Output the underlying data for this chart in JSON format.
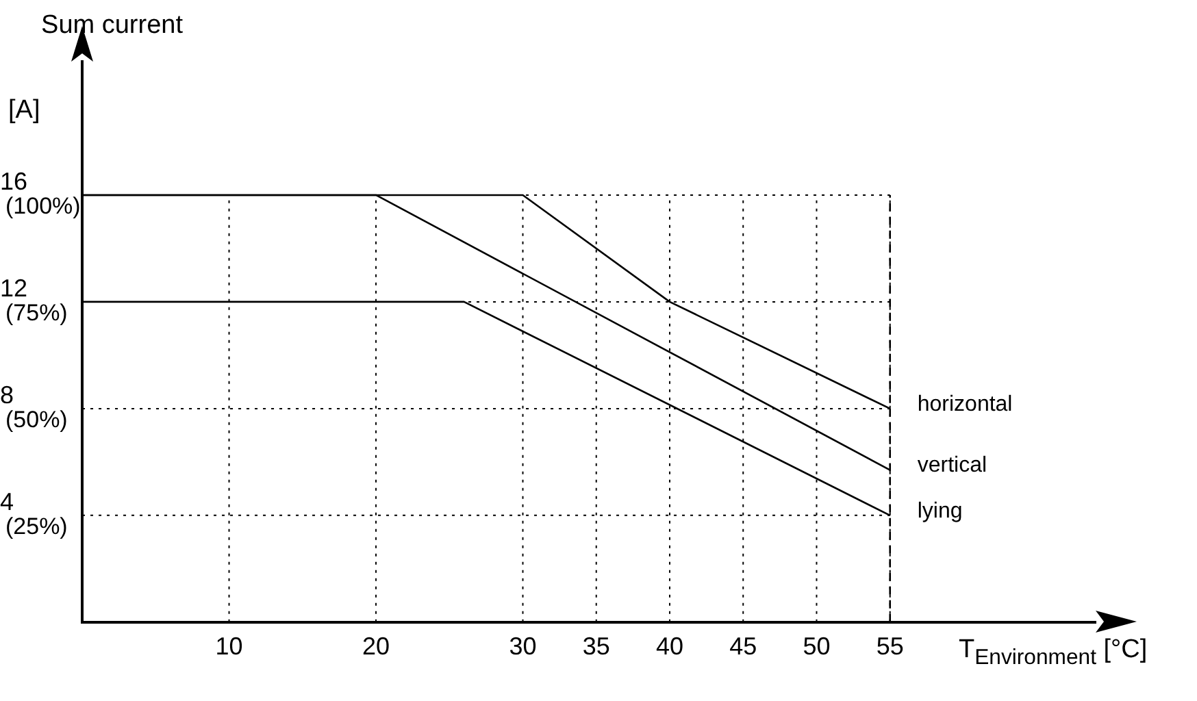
{
  "chart_data": {
    "type": "line",
    "title": "Sum current",
    "ylabel": "[A]",
    "xlabel": "T$_{Environment}$ [°C]",
    "series": [
      {
        "name": "horizontal",
        "color": "#000000",
        "x": [
          0,
          30,
          40,
          55
        ],
        "values": [
          16,
          16,
          12,
          8
        ]
      },
      {
        "name": "vertical",
        "color": "#000000",
        "x": [
          0,
          20,
          55
        ],
        "values": [
          16,
          16,
          5.7
        ]
      },
      {
        "name": "lying",
        "color": "#000000",
        "x": [
          0,
          26,
          55
        ],
        "values": [
          12,
          12,
          4
        ]
      }
    ],
    "xlim": [
      0,
      69
    ],
    "xticks": [
      10,
      20,
      30,
      35,
      40,
      45,
      50,
      55
    ],
    "ylim": [
      0,
      21
    ],
    "yticks": [
      4,
      8,
      12,
      16
    ],
    "y2lim": [
      0,
      131.25
    ],
    "y2ticks": [
      {
        "value": 25,
        "label": "(25%)"
      },
      {
        "value": 50,
        "label": "(50%)"
      },
      {
        "value": 75,
        "label": "(75%)"
      },
      {
        "value": 100,
        "label": "(100%)"
      }
    ],
    "ref_lines": [
      {
        "axis": "x",
        "value": 55,
        "line_style": "dashed",
        "color": "#000000"
      }
    ],
    "grid": true,
    "legend": false,
    "marker": "none",
    "line_style": "solid"
  }
}
